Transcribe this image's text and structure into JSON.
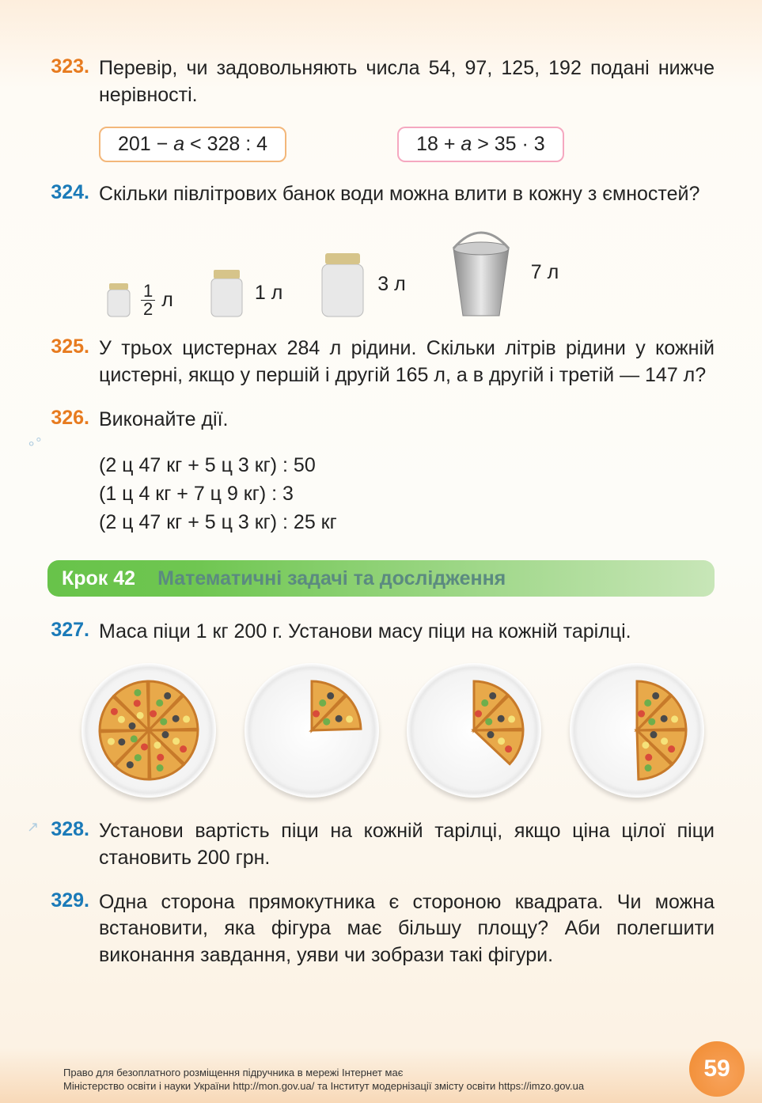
{
  "problems": {
    "p323": {
      "num": "323.",
      "text": "Перевір, чи задовольняють числа 54, 97, 125, 192 подані нижче нерівності."
    },
    "p324": {
      "num": "324.",
      "text": "Скільки півлітрових банок води можна влити в кожну з ємностей?"
    },
    "p325": {
      "num": "325.",
      "text": "У трьох цистернах 284 л рідини. Скільки літрів рідини у кожній цистерні, якщо у першій і другій 165 л, а в другій і третій — 147 л?"
    },
    "p326": {
      "num": "326.",
      "text": "Виконайте дії."
    },
    "p327": {
      "num": "327.",
      "text": "Маса піци 1 кг 200 г. Установи масу піци на кожній тарілці."
    },
    "p328": {
      "num": "328.",
      "text": "Установи вартість піци на кожній тарілці, якщо ціна цілої піци становить 200 грн."
    },
    "p329": {
      "num": "329.",
      "text": "Одна сторона прямокутника є стороною квадрата. Чи можна встановити, яка фігура має більшу площу? Аби полегшити виконання завдання, уяви чи зобрази такі фігури."
    }
  },
  "equations": {
    "eq1_left": "201 − ",
    "eq1_var": "a",
    "eq1_right": " < 328 : 4",
    "eq2_left": "18 + ",
    "eq2_var": "a",
    "eq2_right": " > 35 · 3"
  },
  "jars": {
    "j1_num": "1",
    "j1_den": "2",
    "j1_unit": " л",
    "j2": "1 л",
    "j3": "3 л",
    "j4": "7 л"
  },
  "calc": {
    "l1": "(2 ц 47 кг + 5 ц 3 кг) : 50",
    "l2": "(1 ц 4 кг + 7 ц 9 кг) : 3",
    "l3": "(2 ц 47 кг + 5 ц 3 кг) : 25 кг"
  },
  "banner": {
    "step": "Крок 42",
    "title": "Математичні задачі та дослідження"
  },
  "pizzas": {
    "slices": [
      8,
      2,
      3,
      4
    ],
    "fill": "#e8a94a",
    "crust": "#c77a2a",
    "toppings": [
      "#d94b3a",
      "#6fae4c",
      "#4a4a4a",
      "#f5e27a"
    ]
  },
  "page": {
    "number": "59"
  },
  "footer": {
    "l1": "Право для безоплатного розміщення підручника в мережі Інтернет має",
    "l2": "Міністерство освіти і науки України http://mon.gov.ua/ та Інститут модернізації змісту освіти https://imzo.gov.ua"
  }
}
